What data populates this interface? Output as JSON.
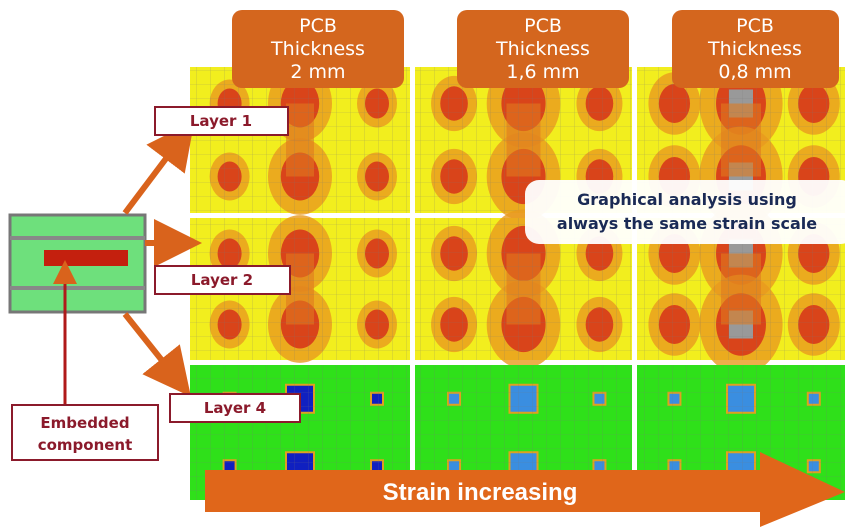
{
  "headers": [
    {
      "lines": [
        "PCB",
        "Thickness",
        "2 mm"
      ]
    },
    {
      "lines": [
        "PCB",
        "Thickness",
        "1,6 mm"
      ]
    },
    {
      "lines": [
        "PCB",
        "Thickness",
        "0,8 mm"
      ]
    }
  ],
  "layers": [
    "Layer 1",
    "Layer 2",
    "Layer 4"
  ],
  "callout": {
    "lines": [
      "Graphical analysis using",
      "always the same strain scale"
    ]
  },
  "component_label": {
    "lines": [
      "Embedded",
      "component"
    ]
  },
  "arrow_label": "Strain increasing"
}
